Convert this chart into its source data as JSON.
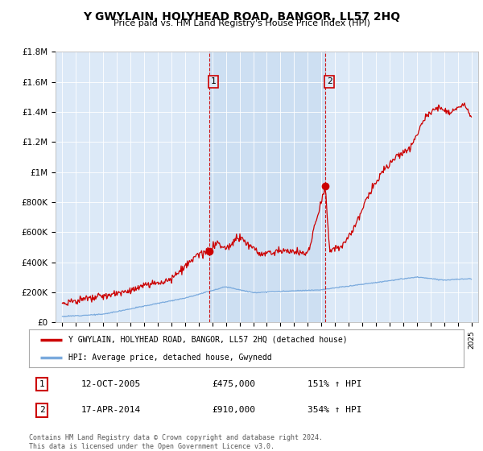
{
  "title": "Y GWYLAIN, HOLYHEAD ROAD, BANGOR, LL57 2HQ",
  "subtitle": "Price paid vs. HM Land Registry's House Price Index (HPI)",
  "background_color": "#dce9f7",
  "shade_color": "#c8dcf0",
  "red_line_color": "#cc0000",
  "blue_line_color": "#7aaadd",
  "marker1_year": 2005.79,
  "marker1_value": 475000,
  "marker2_year": 2014.29,
  "marker2_value": 910000,
  "vline_color": "#cc0000",
  "ylim_min": 0,
  "ylim_max": 1800000,
  "yticks": [
    0,
    200000,
    400000,
    600000,
    800000,
    1000000,
    1200000,
    1400000,
    1600000,
    1800000
  ],
  "ytick_labels": [
    "£0",
    "£200K",
    "£400K",
    "£600K",
    "£800K",
    "£1M",
    "£1.2M",
    "£1.4M",
    "£1.6M",
    "£1.8M"
  ],
  "legend_label_red": "Y GWYLAIN, HOLYHEAD ROAD, BANGOR, LL57 2HQ (detached house)",
  "legend_label_blue": "HPI: Average price, detached house, Gwynedd",
  "table_row1_date": "12-OCT-2005",
  "table_row1_price": "£475,000",
  "table_row1_hpi": "151% ↑ HPI",
  "table_row2_date": "17-APR-2014",
  "table_row2_price": "£910,000",
  "table_row2_hpi": "354% ↑ HPI",
  "footnote": "Contains HM Land Registry data © Crown copyright and database right 2024.\nThis data is licensed under the Open Government Licence v3.0.",
  "xticks": [
    1995,
    1996,
    1997,
    1998,
    1999,
    2000,
    2001,
    2002,
    2003,
    2004,
    2005,
    2006,
    2007,
    2008,
    2009,
    2010,
    2011,
    2012,
    2013,
    2014,
    2015,
    2016,
    2017,
    2018,
    2019,
    2020,
    2021,
    2022,
    2023,
    2024,
    2025
  ],
  "xlim_min": 1994.5,
  "xlim_max": 2025.5
}
